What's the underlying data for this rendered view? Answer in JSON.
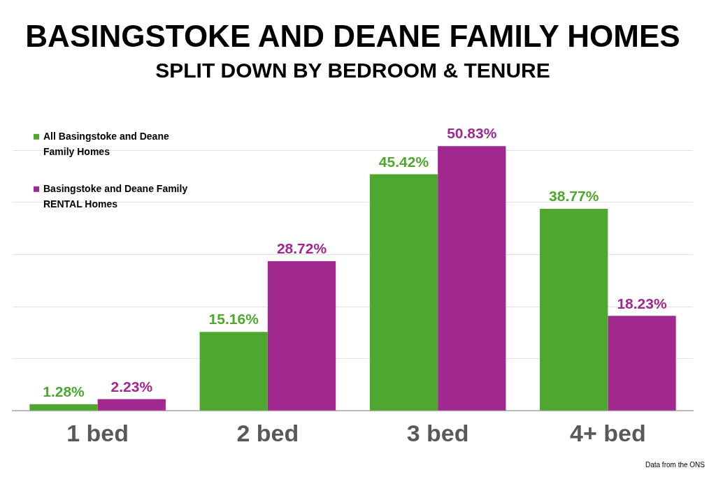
{
  "chart_data": {
    "type": "bar",
    "title": "BASINGSTOKE AND DEANE FAMILY HOMES",
    "subtitle": "SPLIT DOWN BY BEDROOM & TENURE",
    "categories": [
      "1 bed",
      "2 bed",
      "3 bed",
      "4+ bed"
    ],
    "series": [
      {
        "name": "All Basingstoke and Deane Family Homes",
        "color": "#4ea72e",
        "values": [
          1.28,
          15.16,
          45.42,
          38.77
        ],
        "value_labels": [
          "1.28%",
          "15.16%",
          "45.42%",
          "38.77%"
        ]
      },
      {
        "name": "Basingstoke and Deane Family RENTAL Homes",
        "color": "#a0288f",
        "values": [
          2.23,
          28.72,
          50.83,
          18.23
        ],
        "value_labels": [
          "2.23%",
          "28.72%",
          "50.83%",
          "18.23%"
        ]
      }
    ],
    "yticks": [
      {
        "value": 0,
        "label": null
      },
      {
        "value": 10,
        "label": null
      },
      {
        "value": 20,
        "label": null
      },
      {
        "value": 30,
        "label": null
      },
      {
        "value": 40,
        "label": null
      },
      {
        "value": 50,
        "label": null
      }
    ],
    "tick_labels": "x",
    "grid": "y",
    "legend": "top left",
    "annotations": [
      "Data from the ONS"
    ]
  }
}
